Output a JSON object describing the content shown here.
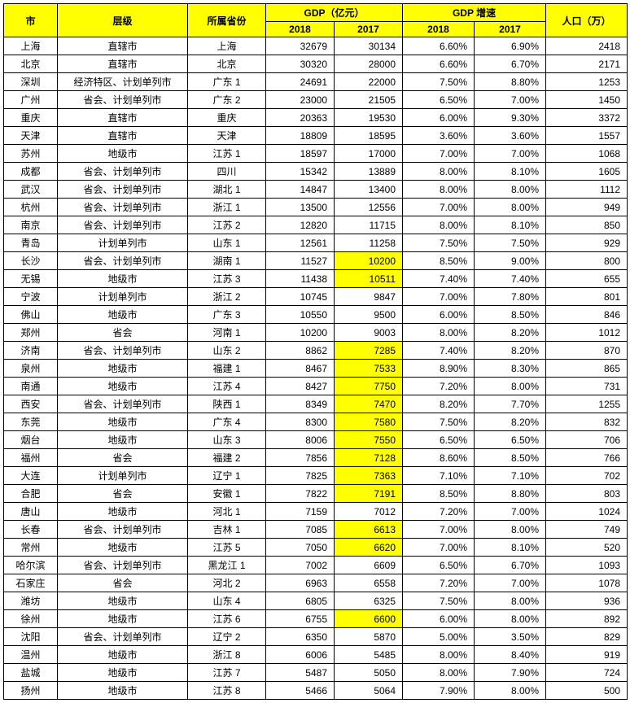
{
  "header": {
    "city": "市",
    "level": "层级",
    "province": "所属省份",
    "gdp_group": "GDP（亿元）",
    "gdp_2018": "2018",
    "gdp_2017": "2017",
    "rate_group": "GDP 增速",
    "rate_2018": "2018",
    "rate_2017": "2017",
    "population": "人口（万）"
  },
  "highlight_color": "#ffff00",
  "rows": [
    {
      "city": "上海",
      "level": "直辖市",
      "prov": "上海",
      "gdp18": "32679",
      "gdp17": "30134",
      "r18": "6.60%",
      "r17": "6.90%",
      "pop": "2418",
      "hl17": false
    },
    {
      "city": "北京",
      "level": "直辖市",
      "prov": "北京",
      "gdp18": "30320",
      "gdp17": "28000",
      "r18": "6.60%",
      "r17": "6.70%",
      "pop": "2171",
      "hl17": false
    },
    {
      "city": "深圳",
      "level": "经济特区、计划单列市",
      "prov": "广东 1",
      "gdp18": "24691",
      "gdp17": "22000",
      "r18": "7.50%",
      "r17": "8.80%",
      "pop": "1253",
      "hl17": false
    },
    {
      "city": "广州",
      "level": "省会、计划单列市",
      "prov": "广东 2",
      "gdp18": "23000",
      "gdp17": "21505",
      "r18": "6.50%",
      "r17": "7.00%",
      "pop": "1450",
      "hl17": false
    },
    {
      "city": "重庆",
      "level": "直辖市",
      "prov": "重庆",
      "gdp18": "20363",
      "gdp17": "19530",
      "r18": "6.00%",
      "r17": "9.30%",
      "pop": "3372",
      "hl17": false
    },
    {
      "city": "天津",
      "level": "直辖市",
      "prov": "天津",
      "gdp18": "18809",
      "gdp17": "18595",
      "r18": "3.60%",
      "r17": "3.60%",
      "pop": "1557",
      "hl17": false
    },
    {
      "city": "苏州",
      "level": "地级市",
      "prov": "江苏 1",
      "gdp18": "18597",
      "gdp17": "17000",
      "r18": "7.00%",
      "r17": "7.00%",
      "pop": "1068",
      "hl17": false
    },
    {
      "city": "成都",
      "level": "省会、计划单列市",
      "prov": "四川",
      "gdp18": "15342",
      "gdp17": "13889",
      "r18": "8.00%",
      "r17": "8.10%",
      "pop": "1605",
      "hl17": false
    },
    {
      "city": "武汉",
      "level": "省会、计划单列市",
      "prov": "湖北 1",
      "gdp18": "14847",
      "gdp17": "13400",
      "r18": "8.00%",
      "r17": "8.00%",
      "pop": "1112",
      "hl17": false
    },
    {
      "city": "杭州",
      "level": "省会、计划单列市",
      "prov": "浙江 1",
      "gdp18": "13500",
      "gdp17": "12556",
      "r18": "7.00%",
      "r17": "8.00%",
      "pop": "949",
      "hl17": false
    },
    {
      "city": "南京",
      "level": "省会、计划单列市",
      "prov": "江苏 2",
      "gdp18": "12820",
      "gdp17": "11715",
      "r18": "8.00%",
      "r17": "8.10%",
      "pop": "850",
      "hl17": false
    },
    {
      "city": "青岛",
      "level": "计划单列市",
      "prov": "山东 1",
      "gdp18": "12561",
      "gdp17": "11258",
      "r18": "7.50%",
      "r17": "7.50%",
      "pop": "929",
      "hl17": false
    },
    {
      "city": "长沙",
      "level": "省会、计划单列市",
      "prov": "湖南 1",
      "gdp18": "11527",
      "gdp17": "10200",
      "r18": "8.50%",
      "r17": "9.00%",
      "pop": "800",
      "hl17": true
    },
    {
      "city": "无锡",
      "level": "地级市",
      "prov": "江苏 3",
      "gdp18": "11438",
      "gdp17": "10511",
      "r18": "7.40%",
      "r17": "7.40%",
      "pop": "655",
      "hl17": true
    },
    {
      "city": "宁波",
      "level": "计划单列市",
      "prov": "浙江 2",
      "gdp18": "10745",
      "gdp17": "9847",
      "r18": "7.00%",
      "r17": "7.80%",
      "pop": "801",
      "hl17": false
    },
    {
      "city": "佛山",
      "level": "地级市",
      "prov": "广东 3",
      "gdp18": "10550",
      "gdp17": "9500",
      "r18": "6.00%",
      "r17": "8.50%",
      "pop": "846",
      "hl17": false
    },
    {
      "city": "郑州",
      "level": "省会",
      "prov": "河南 1",
      "gdp18": "10200",
      "gdp17": "9003",
      "r18": "8.00%",
      "r17": "8.20%",
      "pop": "1012",
      "hl17": false
    },
    {
      "city": "济南",
      "level": "省会、计划单列市",
      "prov": "山东 2",
      "gdp18": "8862",
      "gdp17": "7285",
      "r18": "7.40%",
      "r17": "8.20%",
      "pop": "870",
      "hl17": true
    },
    {
      "city": "泉州",
      "level": "地级市",
      "prov": "福建 1",
      "gdp18": "8467",
      "gdp17": "7533",
      "r18": "8.90%",
      "r17": "8.30%",
      "pop": "865",
      "hl17": true
    },
    {
      "city": "南通",
      "level": "地级市",
      "prov": "江苏 4",
      "gdp18": "8427",
      "gdp17": "7750",
      "r18": "7.20%",
      "r17": "8.00%",
      "pop": "731",
      "hl17": true
    },
    {
      "city": "西安",
      "level": "省会、计划单列市",
      "prov": "陕西 1",
      "gdp18": "8349",
      "gdp17": "7470",
      "r18": "8.20%",
      "r17": "7.70%",
      "pop": "1255",
      "hl17": true
    },
    {
      "city": "东莞",
      "level": "地级市",
      "prov": "广东 4",
      "gdp18": "8300",
      "gdp17": "7580",
      "r18": "7.50%",
      "r17": "8.20%",
      "pop": "832",
      "hl17": true
    },
    {
      "city": "烟台",
      "level": "地级市",
      "prov": "山东 3",
      "gdp18": "8006",
      "gdp17": "7550",
      "r18": "6.50%",
      "r17": "6.50%",
      "pop": "706",
      "hl17": true
    },
    {
      "city": "福州",
      "level": "省会",
      "prov": "福建 2",
      "gdp18": "7856",
      "gdp17": "7128",
      "r18": "8.60%",
      "r17": "8.50%",
      "pop": "766",
      "hl17": true
    },
    {
      "city": "大连",
      "level": "计划单列市",
      "prov": "辽宁 1",
      "gdp18": "7825",
      "gdp17": "7363",
      "r18": "7.10%",
      "r17": "7.10%",
      "pop": "702",
      "hl17": true
    },
    {
      "city": "合肥",
      "level": "省会",
      "prov": "安徽 1",
      "gdp18": "7822",
      "gdp17": "7191",
      "r18": "8.50%",
      "r17": "8.80%",
      "pop": "803",
      "hl17": true
    },
    {
      "city": "唐山",
      "level": "地级市",
      "prov": "河北 1",
      "gdp18": "7159",
      "gdp17": "7012",
      "r18": "7.20%",
      "r17": "7.00%",
      "pop": "1024",
      "hl17": false
    },
    {
      "city": "长春",
      "level": "省会、计划单列市",
      "prov": "吉林 1",
      "gdp18": "7085",
      "gdp17": "6613",
      "r18": "7.00%",
      "r17": "8.00%",
      "pop": "749",
      "hl17": true
    },
    {
      "city": "常州",
      "level": "地级市",
      "prov": "江苏 5",
      "gdp18": "7050",
      "gdp17": "6620",
      "r18": "7.00%",
      "r17": "8.10%",
      "pop": "520",
      "hl17": true
    },
    {
      "city": "哈尔滨",
      "level": "省会、计划单列市",
      "prov": "黑龙江 1",
      "gdp18": "7002",
      "gdp17": "6609",
      "r18": "6.50%",
      "r17": "6.70%",
      "pop": "1093",
      "hl17": false
    },
    {
      "city": "石家庄",
      "level": "省会",
      "prov": "河北 2",
      "gdp18": "6963",
      "gdp17": "6558",
      "r18": "7.20%",
      "r17": "7.00%",
      "pop": "1078",
      "hl17": false
    },
    {
      "city": "潍坊",
      "level": "地级市",
      "prov": "山东 4",
      "gdp18": "6805",
      "gdp17": "6325",
      "r18": "7.50%",
      "r17": "8.00%",
      "pop": "936",
      "hl17": false
    },
    {
      "city": "徐州",
      "level": "地级市",
      "prov": "江苏 6",
      "gdp18": "6755",
      "gdp17": "6600",
      "r18": "6.00%",
      "r17": "8.00%",
      "pop": "892",
      "hl17": true
    },
    {
      "city": "沈阳",
      "level": "省会、计划单列市",
      "prov": "辽宁 2",
      "gdp18": "6350",
      "gdp17": "5870",
      "r18": "5.00%",
      "r17": "3.50%",
      "pop": "829",
      "hl17": false
    },
    {
      "city": "温州",
      "level": "地级市",
      "prov": "浙江 8",
      "gdp18": "6006",
      "gdp17": "5485",
      "r18": "8.00%",
      "r17": "8.40%",
      "pop": "919",
      "hl17": false
    },
    {
      "city": "盐城",
      "level": "地级市",
      "prov": "江苏 7",
      "gdp18": "5487",
      "gdp17": "5050",
      "r18": "8.00%",
      "r17": "7.90%",
      "pop": "724",
      "hl17": false
    },
    {
      "city": "扬州",
      "level": "地级市",
      "prov": "江苏 8",
      "gdp18": "5466",
      "gdp17": "5064",
      "r18": "7.90%",
      "r17": "8.00%",
      "pop": "500",
      "hl17": false
    }
  ]
}
